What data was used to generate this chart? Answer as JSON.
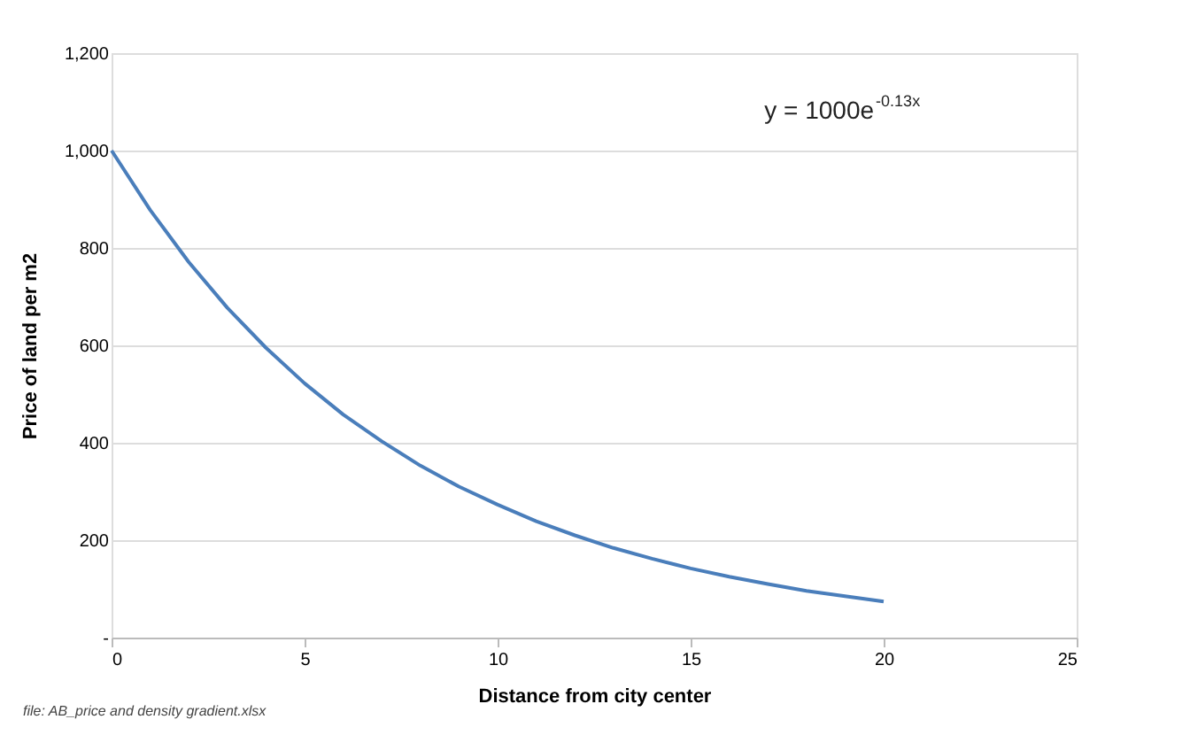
{
  "chart_data": {
    "type": "line",
    "xlabel": "Distance from city center",
    "ylabel": "Price of land per m2",
    "x": [
      0,
      1,
      2,
      3,
      4,
      5,
      6,
      7,
      8,
      9,
      10,
      11,
      12,
      13,
      14,
      15,
      16,
      17,
      18,
      19,
      20
    ],
    "series": [
      {
        "color": "#4a7ebb",
        "values": [
          1000,
          878,
          771,
          677,
          595,
          522,
          458,
          403,
          353,
          310,
          273,
          239,
          210,
          184,
          162,
          142,
          125,
          110,
          96,
          85,
          74
        ]
      }
    ],
    "xlim": [
      0,
      25
    ],
    "xticks": [
      0,
      5,
      10,
      15,
      20,
      25
    ],
    "ylim": [
      0,
      1200
    ],
    "yticks": [
      {
        "value": 0,
        "label": "-"
      },
      200,
      400,
      600,
      800,
      {
        "value": 1000,
        "label": "1,000"
      },
      {
        "value": 1200,
        "label": "1,200"
      }
    ],
    "grid": "y",
    "marker": "none",
    "line_style": "solid",
    "annotations": [
      "y = 1000e$^{-0.13x}$",
      "file: AB_price and density gradient.xlsx"
    ]
  }
}
